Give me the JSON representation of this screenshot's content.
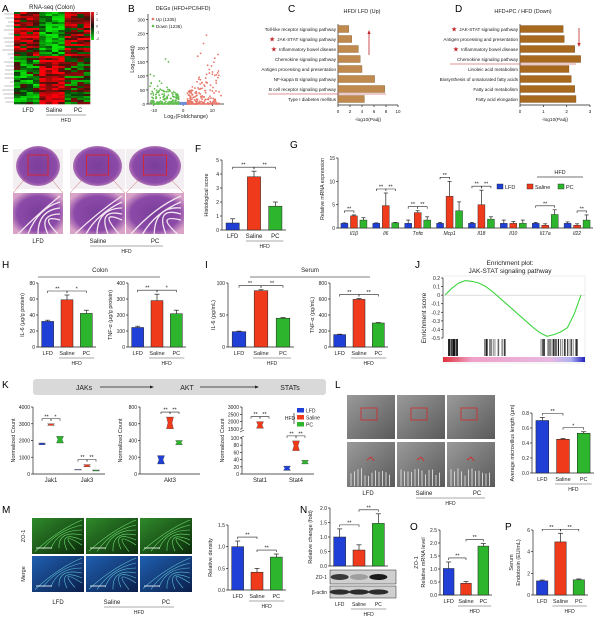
{
  "figure": {
    "panel_labels": [
      "A",
      "B",
      "C",
      "D",
      "E",
      "F",
      "G",
      "H",
      "I",
      "J",
      "K",
      "L",
      "M",
      "N",
      "O",
      "P"
    ]
  },
  "colors": {
    "LFD": "#1f3fd6",
    "Saline": "#f03a1c",
    "PC": "#2db52d",
    "up": "#e8776a",
    "down": "#62bd4f",
    "ns": "#6d8fd8",
    "path_up": "#c08a4e",
    "path_down": "#a8691f",
    "accent": "#c0282c"
  },
  "groups": [
    "LFD",
    "Saline",
    "PC"
  ],
  "group_label": "HFD",
  "panels": {
    "A": {
      "title": "RNA-seq (Colon)",
      "scale_ticks": [
        "2",
        "1",
        "0",
        "-1",
        "-2"
      ]
    },
    "E": {
      "image": "H&E stained colon sections, low and high magnification"
    },
    "H": {
      "header": "Colon"
    },
    "I": {
      "header": "Serum"
    },
    "K": {
      "pathway": [
        "JAKs",
        "AKT",
        "STATs"
      ]
    },
    "L": {
      "image": "Transmission electron micrographs of colon microvilli"
    },
    "M": {
      "row_labels": [
        "ZO-1",
        "Merge"
      ]
    },
    "N": {
      "blot_labels": [
        "ZO-1",
        "β-actin"
      ]
    }
  },
  "chart_data": [
    {
      "panel": "B",
      "type": "scatter",
      "title": "DEGs (HFD+PC/HFD)",
      "legend": [
        "Up (1335)",
        "Down (1236)"
      ],
      "up_count": 1335,
      "down_count": 1236,
      "xlabel": "Log₂(Foldchange)",
      "ylabel": "Log₁₀(padj)",
      "xticks": [
        "-10",
        "0",
        "10"
      ],
      "yticks": [
        "0",
        "50",
        "100",
        "150",
        "200",
        "250",
        "300"
      ],
      "xlim": [
        -12,
        14
      ],
      "ylim": [
        0,
        320
      ]
    },
    {
      "panel": "C",
      "type": "bar",
      "orientation": "horizontal",
      "title": "HFD/ LFD (Up)",
      "xlabel": "-log10(Padj)",
      "xlim": [
        0,
        10
      ],
      "xticks": [
        "0",
        "2",
        "4",
        "6",
        "8",
        "10"
      ],
      "categories": [
        "Toll-like receptor signaling pathway",
        "JAK-STAT signaling pathway",
        "Inflammatory bowel disease",
        "Chemokine signaling pathway",
        "Antigen processing and presentation",
        "NF-kappa B signaling pathway",
        "B cell receptor signaling pathway",
        "Type I diabetes mellitus"
      ],
      "values": [
        1.8,
        2.3,
        3.4,
        3.7,
        4.0,
        6.1,
        7.8,
        4.4
      ],
      "starred": [
        1,
        2
      ],
      "divider_after": 6,
      "arrow": "up"
    },
    {
      "panel": "D",
      "type": "bar",
      "orientation": "horizontal",
      "title": "HFD+PC / HFD (Down)",
      "xlabel": "-log10(Padj)",
      "xlim": [
        0,
        3
      ],
      "xticks": [
        "0",
        "1",
        "2",
        "3"
      ],
      "categories": [
        "JAK-STAT signaling pathway",
        "Antigen processing and presentation",
        "Inflammatory bowel disease",
        "Chemokine signaling pathway",
        "Linoleic acid metabolism",
        "Biosynthesis of unsaturated fatty acids",
        "Fatty acid metabolism",
        "Fatty acid elongation"
      ],
      "values": [
        1.85,
        1.9,
        2.35,
        2.6,
        2.1,
        2.2,
        2.35,
        2.4
      ],
      "starred": [
        0,
        2
      ],
      "divider_after": 3,
      "arrow": "down"
    },
    {
      "panel": "F",
      "type": "bar",
      "ylabel": "Histological score",
      "ylim": [
        0,
        5
      ],
      "yticks": [
        "0",
        "1",
        "2",
        "3",
        "4",
        "5"
      ],
      "values": [
        0.5,
        3.8,
        1.7
      ],
      "errors": [
        0.3,
        0.4,
        0.3
      ],
      "sig": [
        {
          "a": 0,
          "b": 1,
          "label": "**"
        },
        {
          "a": 1,
          "b": 2,
          "label": "**"
        }
      ]
    },
    {
      "panel": "G",
      "type": "bar",
      "ylabel": "Relative mRNA expression",
      "ylim": [
        0,
        15
      ],
      "yticks": [
        "0",
        "5",
        "10",
        "15"
      ],
      "categories": [
        "Il1β",
        "Il6",
        "Tnfα",
        "Mcp1",
        "Il18",
        "Il10",
        "Il17a",
        "Il22"
      ],
      "series": [
        {
          "name": "LFD",
          "values": [
            1,
            1,
            1,
            1,
            1,
            1,
            1,
            1
          ],
          "errors": [
            0.1,
            0.1,
            0.7,
            0.2,
            0.2,
            0.7,
            0.2,
            0.3
          ]
        },
        {
          "name": "Saline",
          "values": [
            2.6,
            4.8,
            3.3,
            6.8,
            5.0,
            1.0,
            0.6,
            0.6
          ],
          "errors": [
            0.2,
            2.7,
            0.4,
            3.2,
            3.1,
            0.4,
            0.3,
            0.3
          ]
        },
        {
          "name": "PC",
          "values": [
            1.7,
            1.1,
            1.7,
            3.7,
            1.9,
            1.0,
            2.9,
            1.7
          ],
          "errors": [
            0.5,
            0.1,
            0.7,
            1.9,
            0.5,
            0.7,
            1.0,
            1.1
          ]
        }
      ],
      "sig": [
        {
          "cat": 0,
          "a": 0,
          "b": 1,
          "label": "**"
        },
        {
          "cat": 1,
          "a": 0,
          "b": 1,
          "label": "**"
        },
        {
          "cat": 1,
          "a": 1,
          "b": 2,
          "label": "**"
        },
        {
          "cat": 2,
          "a": 0,
          "b": 1,
          "label": "**"
        },
        {
          "cat": 2,
          "a": 1,
          "b": 2,
          "label": "**"
        },
        {
          "cat": 3,
          "a": 0,
          "b": 1,
          "label": "**"
        },
        {
          "cat": 4,
          "a": 0,
          "b": 1,
          "label": "**"
        },
        {
          "cat": 4,
          "a": 1,
          "b": 2,
          "label": "**"
        },
        {
          "cat": 6,
          "a": 0,
          "b": 2,
          "label": "**"
        },
        {
          "cat": 7,
          "a": 1,
          "b": 2,
          "label": "**"
        }
      ],
      "legend": [
        "LFD",
        "Saline",
        "PC"
      ],
      "legend_group": "HFD",
      "legend_position": "right"
    },
    {
      "panel": "H",
      "type": "bar",
      "ylabel": "IL-6 (μg/g protein)",
      "ylim": [
        0,
        80
      ],
      "yticks": [
        "0",
        "20",
        "40",
        "60",
        "80"
      ],
      "values": [
        32,
        59,
        42
      ],
      "errors": [
        1.5,
        6,
        4
      ],
      "sig": [
        {
          "a": 0,
          "b": 1,
          "label": "**"
        },
        {
          "a": 1,
          "b": 2,
          "label": "*"
        }
      ]
    },
    {
      "panel": "H",
      "type": "bar",
      "ylabel": "TNF-α (μg/g protein)",
      "ylim": [
        0,
        400
      ],
      "yticks": [
        "0",
        "100",
        "200",
        "300",
        "400"
      ],
      "values": [
        122,
        290,
        208
      ],
      "errors": [
        8,
        40,
        22
      ],
      "sig": [
        {
          "a": 0,
          "b": 1,
          "label": "**"
        },
        {
          "a": 1,
          "b": 2,
          "label": "*"
        }
      ]
    },
    {
      "panel": "I",
      "type": "bar",
      "ylabel": "IL-6 (pg/mL)",
      "ylim": [
        0,
        100
      ],
      "yticks": [
        "0",
        "50",
        "100"
      ],
      "values": [
        24,
        88,
        45
      ],
      "errors": [
        0.8,
        1.5,
        1
      ],
      "sig": [
        {
          "a": 0,
          "b": 1,
          "label": "**"
        },
        {
          "a": 1,
          "b": 2,
          "label": "**"
        }
      ]
    },
    {
      "panel": "I",
      "type": "bar",
      "ylabel": "TNF-α (pg/mL)",
      "ylim": [
        0,
        800
      ],
      "yticks": [
        "0",
        "200",
        "400",
        "600",
        "800"
      ],
      "values": [
        155,
        595,
        300
      ],
      "errors": [
        5,
        12,
        6
      ],
      "sig": [
        {
          "a": 0,
          "b": 1,
          "label": "**"
        },
        {
          "a": 1,
          "b": 2,
          "label": "**"
        }
      ]
    },
    {
      "panel": "J",
      "type": "line",
      "title": "Enrichment plot:",
      "subtitle": "JAK-STAT signaling pathway",
      "ylabel": "Enrichment score",
      "ylim": [
        -0.5,
        0.2
      ],
      "yticks": [
        "0.2",
        "0.1",
        "0",
        "-0.1",
        "-0.2",
        "-0.3",
        "-0.4",
        "-0.5"
      ],
      "es": [
        0.0,
        0.08,
        0.14,
        0.17,
        0.16,
        0.14,
        0.1,
        0.04,
        -0.03,
        -0.1,
        -0.17,
        -0.24,
        -0.31,
        -0.38,
        -0.44,
        -0.48,
        -0.46,
        -0.43,
        -0.38,
        -0.22,
        0.0
      ]
    },
    {
      "panel": "K",
      "type": "box",
      "ylabel": "Normalized Count",
      "ylim": [
        0,
        4000
      ],
      "yticks": [
        "0",
        "1000",
        "2000",
        "3000",
        "4000"
      ],
      "categories": [
        "Jak1",
        "Jak3"
      ],
      "series": [
        {
          "name": "LFD",
          "ranges": [
            [
              1750,
              1850
            ],
            [
              240,
              270
            ]
          ]
        },
        {
          "name": "Saline",
          "ranges": [
            [
              2900,
              3000
            ],
            [
              430,
              560
            ]
          ]
        },
        {
          "name": "PC",
          "ranges": [
            [
              1850,
              2250
            ],
            [
              180,
              240
            ]
          ]
        }
      ],
      "sig": [
        {
          "cat": 0,
          "a": 0,
          "b": 1,
          "label": "**"
        },
        {
          "cat": 0,
          "a": 1,
          "b": 2,
          "label": "*"
        },
        {
          "cat": 1,
          "a": 0,
          "b": 1,
          "label": "**"
        },
        {
          "cat": 1,
          "a": 1,
          "b": 2,
          "label": "**"
        }
      ]
    },
    {
      "panel": "K",
      "type": "box",
      "ylabel": "Normalized Count",
      "ylim": [
        0,
        800
      ],
      "yticks": [
        "0",
        "200",
        "400",
        "600",
        "800"
      ],
      "categories": [
        "Akt3"
      ],
      "series": [
        {
          "name": "LFD",
          "ranges": [
            [
              120,
              220
            ]
          ]
        },
        {
          "name": "Saline",
          "ranges": [
            [
              540,
              680
            ]
          ]
        },
        {
          "name": "PC",
          "ranges": [
            [
              350,
              400
            ]
          ]
        }
      ],
      "sig": [
        {
          "cat": 0,
          "a": 0,
          "b": 1,
          "label": "**"
        },
        {
          "cat": 0,
          "a": 1,
          "b": 2,
          "label": "**"
        }
      ]
    },
    {
      "panel": "K",
      "type": "box",
      "ylabel": "Normalized Count",
      "axis_break": [
        100,
        1500
      ],
      "yticks_low": [
        "0",
        "20",
        "40",
        "60",
        "80",
        "100"
      ],
      "yticks_high": [
        "1500",
        "2000",
        "2500",
        "3000"
      ],
      "categories": [
        "Stat1",
        "Stat4"
      ],
      "series": [
        {
          "name": "LFD",
          "ranges": [
            null,
            [
              10,
              22
            ]
          ]
        },
        {
          "name": "Saline",
          "ranges": [
            [
              1550,
              2000
            ],
            [
              65,
              92
            ]
          ]
        },
        {
          "name": "PC",
          "ranges": [
            null,
            [
              28,
              38
            ]
          ]
        }
      ],
      "sig": [
        {
          "cat": 0,
          "a": 0,
          "b": 1,
          "label": "**"
        },
        {
          "cat": 0,
          "a": 1,
          "b": 2,
          "label": "**"
        },
        {
          "cat": 1,
          "a": 0,
          "b": 1,
          "label": "**"
        },
        {
          "cat": 1,
          "a": 1,
          "b": 2,
          "label": "**"
        }
      ],
      "legend": [
        "LFD",
        "Saline",
        "PC"
      ],
      "legend_group": "HFD",
      "legend_position": "top-right"
    },
    {
      "panel": "L",
      "type": "bar",
      "ylabel": "Average microvillus length (μm)",
      "ylim": [
        0,
        0.8
      ],
      "yticks": [
        "0.0",
        "0.2",
        "0.4",
        "0.6",
        "0.8"
      ],
      "values": [
        0.7,
        0.45,
        0.53
      ],
      "errors": [
        0.04,
        0.01,
        0.02
      ],
      "sig": [
        {
          "a": 0,
          "b": 1,
          "label": "**"
        },
        {
          "a": 1,
          "b": 2,
          "label": "*"
        }
      ]
    },
    {
      "panel": "M",
      "type": "bar",
      "ylabel": "Relative density",
      "ylim": [
        0,
        1.5
      ],
      "yticks": [
        "0.0",
        "0.5",
        "1.0",
        "1.5"
      ],
      "values": [
        1.0,
        0.41,
        0.76
      ],
      "errors": [
        0.13,
        0.09,
        0.07
      ],
      "sig": [
        {
          "a": 0,
          "b": 1,
          "label": "**"
        },
        {
          "a": 1,
          "b": 2,
          "label": "**"
        }
      ]
    },
    {
      "panel": "N",
      "type": "bar",
      "ylabel": "Relative change (fold)",
      "ylim": [
        0,
        2.0
      ],
      "yticks": [
        "0.0",
        "0.5",
        "1.0",
        "1.5",
        "2.0"
      ],
      "values": [
        1.0,
        0.55,
        1.47
      ],
      "errors": [
        0.28,
        0.18,
        0.33
      ],
      "sig": [
        {
          "a": 0,
          "b": 1,
          "label": "**"
        },
        {
          "a": 1,
          "b": 2,
          "label": "**"
        }
      ]
    },
    {
      "panel": "O",
      "type": "bar",
      "ylabel": "ZO-1",
      "ylabel2": "Relative mRNA level",
      "ylim": [
        0,
        2.5
      ],
      "yticks": [
        "0.0",
        "0.5",
        "1.0",
        "1.5",
        "2.0",
        "2.5"
      ],
      "values": [
        1.02,
        0.45,
        1.88
      ],
      "errors": [
        0.25,
        0.07,
        0.1
      ],
      "sig": [
        {
          "a": 0,
          "b": 1,
          "label": "**"
        },
        {
          "a": 1,
          "b": 2,
          "label": "**"
        }
      ]
    },
    {
      "panel": "P",
      "type": "bar",
      "ylabel": "Serum",
      "ylabel2": "Endotoxin (EU/mL)",
      "ylim": [
        0,
        6
      ],
      "yticks": [
        "0",
        "2",
        "4",
        "6"
      ],
      "values": [
        1.3,
        4.9,
        1.4
      ],
      "errors": [
        0.08,
        0.8,
        0.08
      ],
      "sig": [
        {
          "a": 0,
          "b": 1,
          "label": "**"
        },
        {
          "a": 1,
          "b": 2,
          "label": "**"
        }
      ]
    }
  ]
}
